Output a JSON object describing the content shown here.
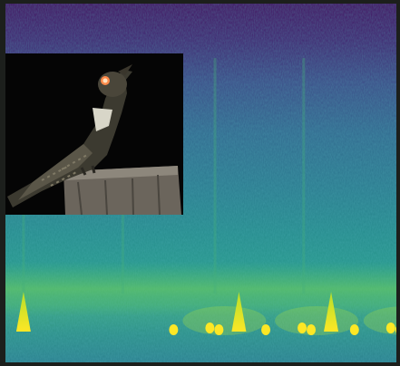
{
  "figure": {
    "kind": "spectrogram-with-photo",
    "colormap": "viridis",
    "calls": [
      {
        "time_fraction": 0.01
      },
      {
        "time_fraction": 0.29
      },
      {
        "time_fraction": 0.55
      },
      {
        "time_fraction": 0.8
      }
    ],
    "inset": {
      "subject": "nightjar-bird-on-post",
      "background": "#050505"
    },
    "colors": {
      "low": "#43115f",
      "mid": "#2a7b8e",
      "high": "#fde725"
    }
  }
}
